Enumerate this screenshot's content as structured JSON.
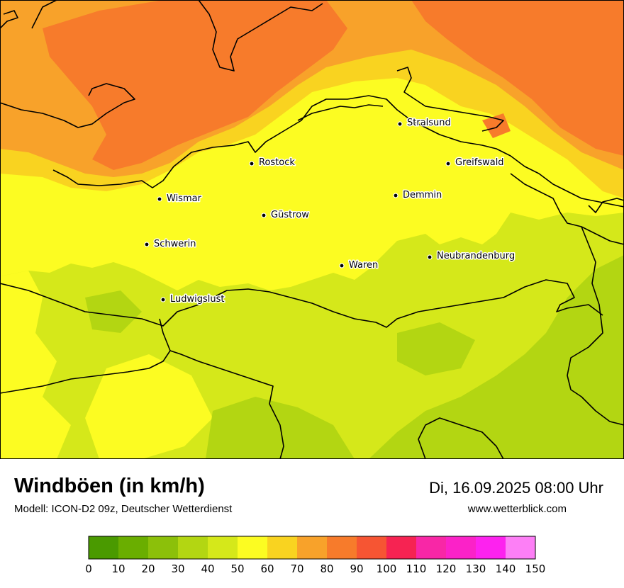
{
  "header": {
    "title": "Windböen (in km/h)",
    "subtitle": "Modell: ICON-D2 09z, Deutscher Wetterdienst",
    "datetime": "Di, 16.09.2025 08:00 Uhr",
    "website": "www.wetterblick.com"
  },
  "cities": [
    {
      "name": "Stralsund"
    },
    {
      "name": "Rostock"
    },
    {
      "name": "Greifswald"
    },
    {
      "name": "Wismar"
    },
    {
      "name": "Demmin"
    },
    {
      "name": "Güstrow"
    },
    {
      "name": "Schwerin"
    },
    {
      "name": "Neubrandenburg"
    },
    {
      "name": "Waren"
    },
    {
      "name": "Ludwigslust"
    }
  ],
  "legend": {
    "ticks": [
      "0",
      "10",
      "20",
      "30",
      "40",
      "50",
      "60",
      "70",
      "80",
      "90",
      "100",
      "110",
      "120",
      "130",
      "140",
      "150"
    ],
    "colors": [
      "#4a9a00",
      "#6aae00",
      "#8cc00a",
      "#b3d612",
      "#d5e81a",
      "#fcfc22",
      "#f9d320",
      "#f8a22a",
      "#f77b2b",
      "#f65533",
      "#f62352",
      "#f827a6",
      "#fb22c8",
      "#fd22ef",
      "#fd7ff6"
    ]
  }
}
